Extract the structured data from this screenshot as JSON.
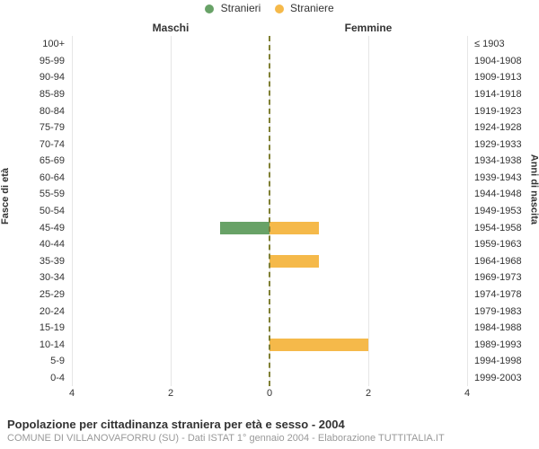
{
  "chart": {
    "type": "population-pyramid",
    "background_color": "#ffffff",
    "grid_color": "#e6e6e6",
    "center_line_color": "#808034",
    "text_color": "#333333",
    "subtext_color": "#999999",
    "legend": [
      {
        "label": "Stranieri",
        "color": "#68a267"
      },
      {
        "label": "Straniere",
        "color": "#f5b94a"
      }
    ],
    "col_title_left": "Maschi",
    "col_title_right": "Femmine",
    "y_axis_left_title": "Fasce di età",
    "y_axis_right_title": "Anni di nascita",
    "x_max": 4,
    "x_ticks": [
      4,
      2,
      0,
      2,
      4
    ],
    "rows": [
      {
        "age": "100+",
        "birth": "≤ 1903",
        "male": 0,
        "female": 0
      },
      {
        "age": "95-99",
        "birth": "1904-1908",
        "male": 0,
        "female": 0
      },
      {
        "age": "90-94",
        "birth": "1909-1913",
        "male": 0,
        "female": 0
      },
      {
        "age": "85-89",
        "birth": "1914-1918",
        "male": 0,
        "female": 0
      },
      {
        "age": "80-84",
        "birth": "1919-1923",
        "male": 0,
        "female": 0
      },
      {
        "age": "75-79",
        "birth": "1924-1928",
        "male": 0,
        "female": 0
      },
      {
        "age": "70-74",
        "birth": "1929-1933",
        "male": 0,
        "female": 0
      },
      {
        "age": "65-69",
        "birth": "1934-1938",
        "male": 0,
        "female": 0
      },
      {
        "age": "60-64",
        "birth": "1939-1943",
        "male": 0,
        "female": 0
      },
      {
        "age": "55-59",
        "birth": "1944-1948",
        "male": 0,
        "female": 0
      },
      {
        "age": "50-54",
        "birth": "1949-1953",
        "male": 0,
        "female": 0
      },
      {
        "age": "45-49",
        "birth": "1954-1958",
        "male": 1,
        "female": 1
      },
      {
        "age": "40-44",
        "birth": "1959-1963",
        "male": 0,
        "female": 0
      },
      {
        "age": "35-39",
        "birth": "1964-1968",
        "male": 0,
        "female": 1
      },
      {
        "age": "30-34",
        "birth": "1969-1973",
        "male": 0,
        "female": 0
      },
      {
        "age": "25-29",
        "birth": "1974-1978",
        "male": 0,
        "female": 0
      },
      {
        "age": "20-24",
        "birth": "1979-1983",
        "male": 0,
        "female": 0
      },
      {
        "age": "15-19",
        "birth": "1984-1988",
        "male": 0,
        "female": 0
      },
      {
        "age": "10-14",
        "birth": "1989-1993",
        "male": 0,
        "female": 2
      },
      {
        "age": "5-9",
        "birth": "1994-1998",
        "male": 0,
        "female": 0
      },
      {
        "age": "0-4",
        "birth": "1999-2003",
        "male": 0,
        "female": 0
      }
    ],
    "title": "Popolazione per cittadinanza straniera per età e sesso - 2004",
    "subtitle": "COMUNE DI VILLANOVAFORRU (SU) - Dati ISTAT 1° gennaio 2004 - Elaborazione TUTTITALIA.IT",
    "label_fontsize": 11,
    "title_fontsize": 13
  }
}
